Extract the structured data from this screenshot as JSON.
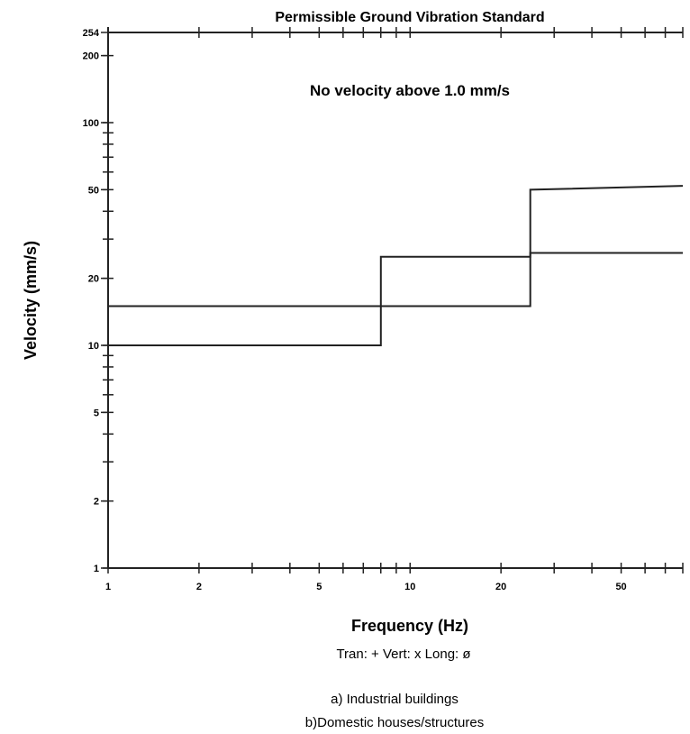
{
  "chart_data": {
    "type": "line",
    "title": "Permissible Ground Vibration Standard",
    "annotation": "No velocity above 1.0 mm/s",
    "xlabel": "Frequency (Hz)",
    "ylabel": "Velocity (mm/s)",
    "x_scale": "log",
    "y_scale": "log",
    "xlim": [
      1,
      80
    ],
    "ylim": [
      1,
      254
    ],
    "x_ticks": [
      {
        "value": 1,
        "label": "1"
      },
      {
        "value": 2,
        "label": "2"
      },
      {
        "value": 5,
        "label": "5"
      },
      {
        "value": 10,
        "label": "10"
      },
      {
        "value": 20,
        "label": "20"
      },
      {
        "value": 50,
        "label": "50"
      }
    ],
    "y_ticks": [
      {
        "value": 1,
        "label": "1"
      },
      {
        "value": 2,
        "label": "2"
      },
      {
        "value": 5,
        "label": "5"
      },
      {
        "value": 10,
        "label": "10"
      },
      {
        "value": 20,
        "label": "20"
      },
      {
        "value": 50,
        "label": "50"
      },
      {
        "value": 100,
        "label": "100"
      },
      {
        "value": 200,
        "label": "200"
      },
      {
        "value": 254,
        "label": "254"
      }
    ],
    "series": [
      {
        "x": [
          1,
          8,
          8,
          25,
          25,
          80
        ],
        "y": [
          10,
          10,
          25,
          25,
          26,
          26
        ]
      },
      {
        "x": [
          1,
          25,
          25,
          80
        ],
        "y": [
          15,
          15,
          50,
          52
        ]
      },
      {
        "x": [
          1,
          80
        ],
        "y": [
          254,
          254
        ]
      }
    ],
    "legend_text": "Tran: +  Vert: x  Long: ø",
    "captions": [
      "a) Industrial buildings",
      "b)Domestic houses/structures"
    ],
    "grid": false
  }
}
